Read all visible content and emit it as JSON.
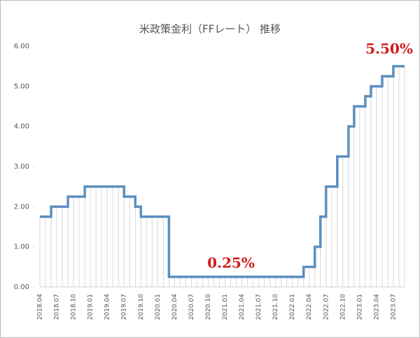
{
  "chart_data": {
    "type": "step-line",
    "title": "米政策金利（FFレート） 推移",
    "categories": [
      "2018.04",
      null,
      null,
      "2018.07",
      null,
      null,
      "2018.10",
      null,
      null,
      "2019.01",
      null,
      null,
      "2019.04",
      null,
      null,
      "2019.07",
      null,
      null,
      "2019.10",
      null,
      null,
      "2020.01",
      null,
      null,
      "2020.04",
      null,
      null,
      "2020.07",
      null,
      null,
      "2020.10",
      null,
      null,
      "2021.01",
      null,
      null,
      "2021.04",
      null,
      null,
      "2021.07",
      null,
      null,
      "2021.10",
      null,
      null,
      "2022.01",
      null,
      null,
      "2022.04",
      null,
      null,
      "2022.07",
      null,
      null,
      "2022.10",
      null,
      null,
      "2023.01",
      null,
      null,
      "2023.04",
      null,
      null,
      "2023.07",
      null,
      null
    ],
    "values": [
      1.75,
      1.75,
      2.0,
      2.0,
      2.0,
      2.25,
      2.25,
      2.25,
      2.5,
      2.5,
      2.5,
      2.5,
      2.5,
      2.5,
      2.5,
      2.25,
      2.25,
      2.0,
      1.75,
      1.75,
      1.75,
      1.75,
      1.75,
      0.25,
      0.25,
      0.25,
      0.25,
      0.25,
      0.25,
      0.25,
      0.25,
      0.25,
      0.25,
      0.25,
      0.25,
      0.25,
      0.25,
      0.25,
      0.25,
      0.25,
      0.25,
      0.25,
      0.25,
      0.25,
      0.25,
      0.25,
      0.25,
      0.5,
      0.5,
      1.0,
      1.75,
      2.5,
      2.5,
      3.25,
      3.25,
      4.0,
      4.5,
      4.5,
      4.75,
      5.0,
      5.0,
      5.25,
      5.25,
      5.5,
      5.5,
      5.5
    ],
    "color": "#5b8fbf",
    "ylim": [
      0,
      6
    ],
    "yticks": [
      {
        "value": 0,
        "label": "0.00"
      },
      {
        "value": 1,
        "label": "1.00"
      },
      {
        "value": 2,
        "label": "2.00"
      },
      {
        "value": 3,
        "label": "3.00"
      },
      {
        "value": 4,
        "label": "4.00"
      },
      {
        "value": 5,
        "label": "5.00"
      },
      {
        "value": 6,
        "label": "6.00"
      }
    ],
    "annotations": [
      "5.50%",
      "0.25%"
    ]
  }
}
